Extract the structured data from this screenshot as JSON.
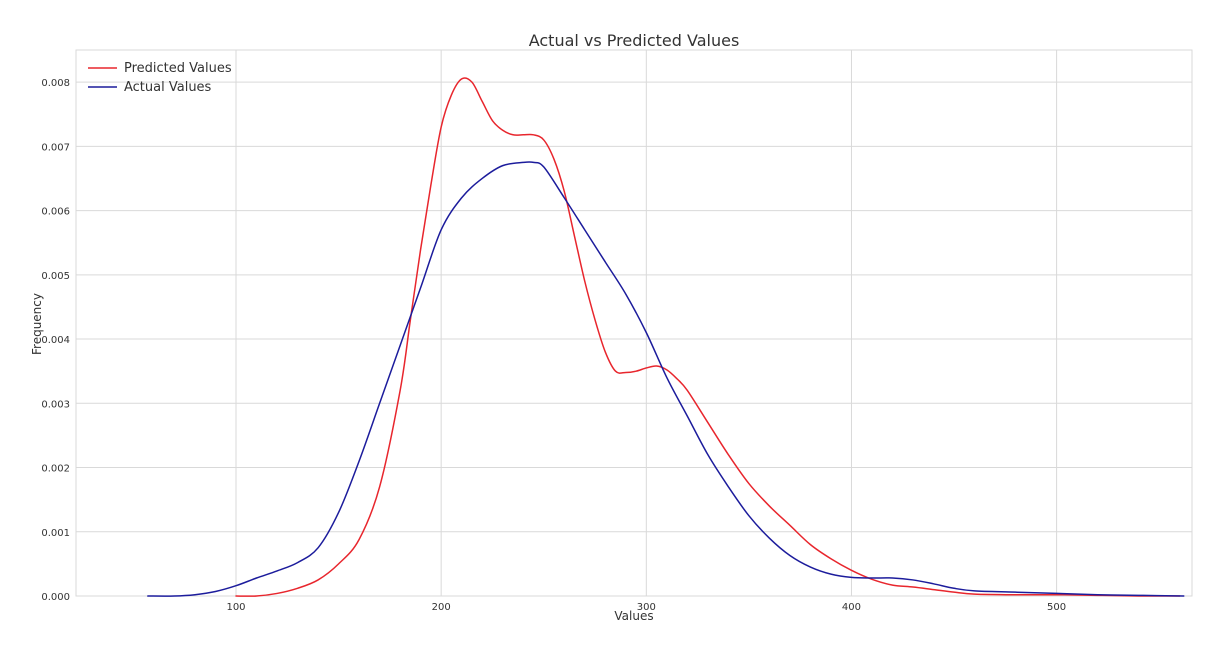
{
  "chart_data": {
    "type": "line",
    "title": "Actual vs Predicted Values",
    "xlabel": "Values",
    "ylabel": "Frequency",
    "xlim": [
      22,
      566
    ],
    "ylim": [
      0,
      0.0085
    ],
    "x_ticks": [
      100,
      200,
      300,
      400,
      500
    ],
    "x_tick_labels": [
      "100",
      "200",
      "300",
      "400",
      "500"
    ],
    "y_ticks": [
      0,
      0.001,
      0.002,
      0.003,
      0.004,
      0.005,
      0.006,
      0.007,
      0.008
    ],
    "y_tick_labels": [
      "0.000",
      "0.001",
      "0.002",
      "0.003",
      "0.004",
      "0.005",
      "0.006",
      "0.007",
      "0.008"
    ],
    "grid": true,
    "legend_position": "top-left",
    "series": [
      {
        "name": "Predicted Values",
        "color": "#e8262d",
        "x": [
          100,
          110,
          120,
          130,
          140,
          150,
          160,
          170,
          180,
          185,
          190,
          195,
          200,
          205,
          210,
          215,
          220,
          225,
          230,
          235,
          240,
          245,
          250,
          255,
          260,
          265,
          270,
          275,
          280,
          285,
          290,
          295,
          300,
          305,
          310,
          315,
          320,
          330,
          340,
          350,
          360,
          370,
          380,
          390,
          400,
          410,
          420,
          430,
          440,
          450,
          460,
          480,
          500,
          520,
          540,
          560
        ],
        "y": [
          0.0,
          0.0,
          4e-05,
          0.00012,
          0.00025,
          0.0005,
          0.00088,
          0.0017,
          0.0032,
          0.0043,
          0.0054,
          0.0064,
          0.0073,
          0.0078,
          0.00805,
          0.008,
          0.0077,
          0.0074,
          0.00725,
          0.00718,
          0.00718,
          0.00718,
          0.0071,
          0.0068,
          0.0063,
          0.0056,
          0.0049,
          0.0043,
          0.0038,
          0.0035,
          0.00348,
          0.0035,
          0.00355,
          0.00358,
          0.00352,
          0.00338,
          0.0032,
          0.0027,
          0.0022,
          0.00175,
          0.0014,
          0.0011,
          0.0008,
          0.00058,
          0.0004,
          0.00026,
          0.00017,
          0.00014,
          0.0001,
          6e-05,
          3e-05,
          2e-05,
          2e-05,
          1e-05,
          0.0,
          0.0
        ]
      },
      {
        "name": "Actual Values",
        "color": "#1c1c9c",
        "x": [
          57,
          70,
          80,
          90,
          100,
          110,
          120,
          130,
          140,
          150,
          160,
          170,
          180,
          190,
          200,
          210,
          220,
          230,
          240,
          245,
          250,
          260,
          270,
          280,
          290,
          300,
          310,
          320,
          330,
          340,
          350,
          360,
          370,
          380,
          390,
          400,
          410,
          420,
          430,
          440,
          450,
          460,
          480,
          500,
          520,
          540,
          562
        ],
        "y": [
          0.0,
          0.0,
          2e-05,
          7e-05,
          0.00016,
          0.00028,
          0.00039,
          0.00052,
          0.00075,
          0.0013,
          0.0021,
          0.003,
          0.0039,
          0.0048,
          0.0057,
          0.0062,
          0.0065,
          0.0067,
          0.00675,
          0.00675,
          0.00668,
          0.0062,
          0.0057,
          0.0052,
          0.0047,
          0.0041,
          0.0034,
          0.0028,
          0.0022,
          0.0017,
          0.00125,
          0.0009,
          0.00063,
          0.00045,
          0.00034,
          0.00029,
          0.00028,
          0.00028,
          0.00025,
          0.00019,
          0.00012,
          8e-05,
          6e-05,
          4e-05,
          2e-05,
          1e-05,
          0.0
        ]
      }
    ]
  }
}
